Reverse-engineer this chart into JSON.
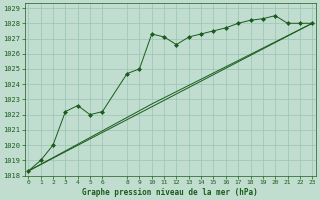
{
  "title": "Graphe pression niveau de la mer (hPa)",
  "bg_color": "#c0ddd0",
  "grid_color": "#99c4b4",
  "line_color": "#1a5c1a",
  "marker_color": "#1a5c1a",
  "xlim": [
    -0.3,
    23.3
  ],
  "ylim": [
    1018,
    1029.3
  ],
  "xticks": [
    0,
    1,
    2,
    3,
    4,
    5,
    6,
    8,
    9,
    10,
    11,
    12,
    13,
    14,
    15,
    16,
    17,
    18,
    19,
    20,
    21,
    22,
    23
  ],
  "yticks": [
    1018,
    1019,
    1020,
    1021,
    1022,
    1023,
    1024,
    1025,
    1026,
    1027,
    1028,
    1029
  ],
  "series": [
    {
      "x": [
        0,
        1,
        2,
        3,
        4,
        5,
        6,
        8,
        9,
        10,
        11,
        12,
        13,
        14,
        15,
        16,
        17,
        18,
        19,
        20,
        21,
        22,
        23
      ],
      "y": [
        1018.3,
        1019.0,
        1020.0,
        1022.2,
        1022.6,
        1022.0,
        1022.2,
        1024.7,
        1025.0,
        1027.3,
        1027.1,
        1026.6,
        1027.1,
        1027.3,
        1027.5,
        1027.7,
        1028.0,
        1028.2,
        1028.3,
        1028.5,
        1028.0,
        1028.0,
        1028.0
      ],
      "marker": "D",
      "markersize": 2.0,
      "lw": 0.7
    },
    {
      "x": [
        0,
        23
      ],
      "y": [
        1018.3,
        1028.0
      ],
      "marker": null,
      "markersize": 0,
      "lw": 0.7
    },
    {
      "x": [
        0,
        10,
        23
      ],
      "y": [
        1018.3,
        1022.7,
        1028.0
      ],
      "marker": null,
      "markersize": 0,
      "lw": 0.7
    }
  ]
}
